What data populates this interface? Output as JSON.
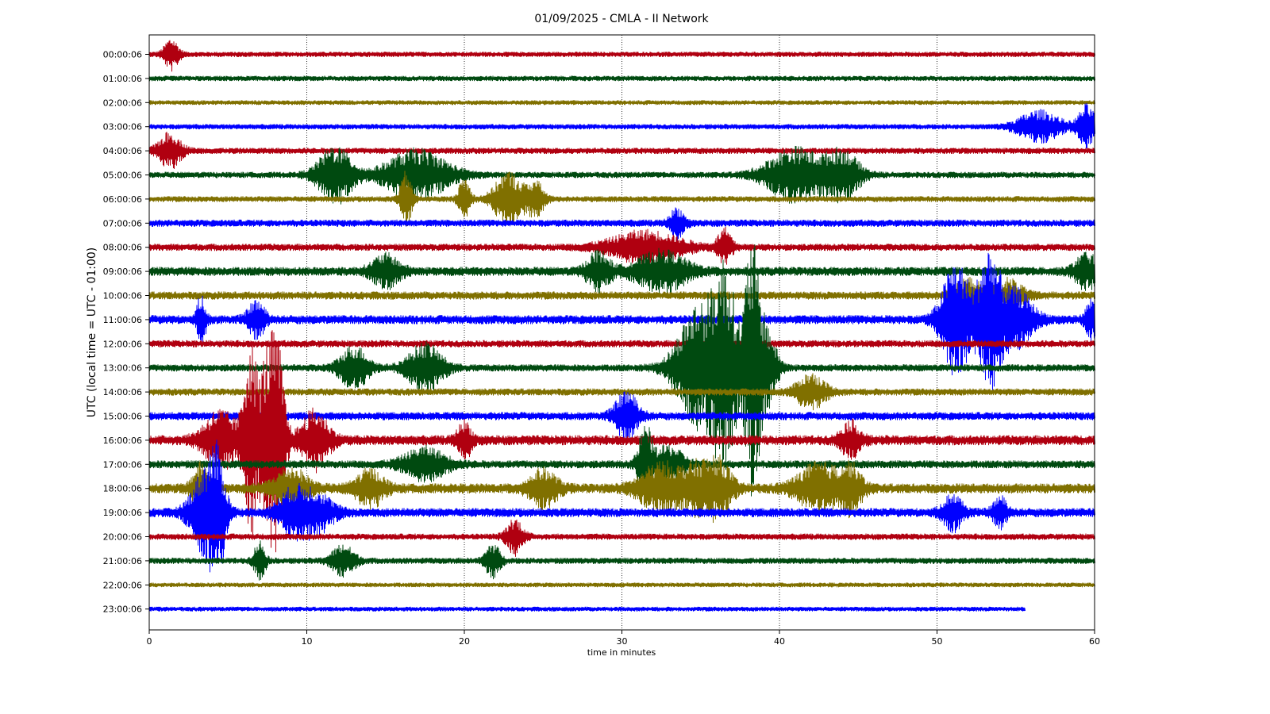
{
  "chart_data": {
    "type": "line",
    "title": "01/09/2025 - CMLA - II Network",
    "xlabel": "time in minutes",
    "ylabel": "UTC (local time = UTC - 01:00)",
    "xlim": [
      0,
      60
    ],
    "xticks": [
      "0",
      "10",
      "20",
      "30",
      "40",
      "50",
      "60"
    ],
    "grid": "vertical dotted at x ticks",
    "rows": [
      {
        "label": "00:00:06",
        "color": "#b00010",
        "amp": 0.25,
        "end": 60,
        "bursts": [
          [
            1.4,
            0.5,
            1.6
          ]
        ]
      },
      {
        "label": "01:00:06",
        "color": "#004a10",
        "amp": 0.25,
        "end": 60,
        "bursts": []
      },
      {
        "label": "02:00:06",
        "color": "#807000",
        "amp": 0.22,
        "end": 60,
        "bursts": []
      },
      {
        "label": "03:00:06",
        "color": "#0000ff",
        "amp": 0.25,
        "end": 60,
        "bursts": [
          [
            56.5,
            1.5,
            1.6
          ],
          [
            59.5,
            0.6,
            2.2
          ]
        ]
      },
      {
        "label": "04:00:06",
        "color": "#b00010",
        "amp": 0.3,
        "end": 60,
        "bursts": [
          [
            1.3,
            0.8,
            1.8
          ]
        ]
      },
      {
        "label": "05:00:06",
        "color": "#004a10",
        "amp": 0.3,
        "end": 60,
        "bursts": [
          [
            11.8,
            1.2,
            3.0
          ],
          [
            17.0,
            2.2,
            2.6
          ],
          [
            41.0,
            2.0,
            2.8
          ],
          [
            44.0,
            1.2,
            2.4
          ]
        ]
      },
      {
        "label": "06:00:06",
        "color": "#807000",
        "amp": 0.28,
        "end": 60,
        "bursts": [
          [
            16.3,
            0.4,
            2.8
          ],
          [
            20.0,
            0.4,
            2.2
          ],
          [
            22.8,
            1.0,
            2.8
          ],
          [
            24.5,
            0.6,
            1.8
          ]
        ]
      },
      {
        "label": "07:00:06",
        "color": "#0000ff",
        "amp": 0.35,
        "end": 60,
        "bursts": [
          [
            33.5,
            0.5,
            1.5
          ]
        ]
      },
      {
        "label": "08:00:06",
        "color": "#b00010",
        "amp": 0.35,
        "end": 60,
        "bursts": [
          [
            31.5,
            2.5,
            1.6
          ],
          [
            36.5,
            0.5,
            1.8
          ]
        ]
      },
      {
        "label": "09:00:06",
        "color": "#004a10",
        "amp": 0.45,
        "end": 60,
        "bursts": [
          [
            15.0,
            1.0,
            1.6
          ],
          [
            28.5,
            0.8,
            2.0
          ],
          [
            32.5,
            1.8,
            2.0
          ],
          [
            59.5,
            0.8,
            1.8
          ]
        ]
      },
      {
        "label": "10:00:06",
        "color": "#807000",
        "amp": 0.4,
        "end": 60,
        "bursts": [
          [
            52.0,
            1.0,
            1.6
          ],
          [
            54.5,
            1.0,
            1.6
          ]
        ]
      },
      {
        "label": "11:00:06",
        "color": "#0000ff",
        "amp": 0.45,
        "end": 60,
        "bursts": [
          [
            3.3,
            0.3,
            2.5
          ],
          [
            6.8,
            0.6,
            1.8
          ],
          [
            51.2,
            1.0,
            6.0
          ],
          [
            53.3,
            0.8,
            7.0
          ],
          [
            55.0,
            1.2,
            3.0
          ],
          [
            59.8,
            0.4,
            2.0
          ]
        ]
      },
      {
        "label": "12:00:06",
        "color": "#b00010",
        "amp": 0.35,
        "end": 60,
        "bursts": []
      },
      {
        "label": "13:00:06",
        "color": "#004a10",
        "amp": 0.35,
        "end": 60,
        "bursts": [
          [
            13.0,
            1.0,
            2.2
          ],
          [
            17.5,
            1.2,
            2.5
          ],
          [
            35.0,
            1.6,
            7.0
          ],
          [
            36.6,
            0.8,
            9.0
          ],
          [
            38.2,
            0.5,
            12.0
          ],
          [
            39.0,
            0.8,
            5.0
          ]
        ]
      },
      {
        "label": "14:00:06",
        "color": "#807000",
        "amp": 0.35,
        "end": 60,
        "bursts": [
          [
            42.0,
            1.0,
            1.8
          ]
        ]
      },
      {
        "label": "15:00:06",
        "color": "#0000ff",
        "amp": 0.4,
        "end": 60,
        "bursts": [
          [
            30.3,
            0.8,
            2.5
          ]
        ]
      },
      {
        "label": "16:00:06",
        "color": "#b00010",
        "amp": 0.5,
        "end": 60,
        "bursts": [
          [
            4.5,
            1.2,
            3.0
          ],
          [
            6.4,
            0.5,
            10.0
          ],
          [
            7.5,
            0.6,
            9.0
          ],
          [
            8.2,
            0.5,
            8.0
          ],
          [
            10.5,
            1.0,
            3.0
          ],
          [
            20.0,
            0.5,
            1.8
          ],
          [
            44.5,
            0.7,
            1.8
          ]
        ]
      },
      {
        "label": "17:00:06",
        "color": "#004a10",
        "amp": 0.4,
        "end": 60,
        "bursts": [
          [
            17.5,
            1.5,
            1.6
          ],
          [
            31.5,
            0.5,
            4.0
          ],
          [
            33.0,
            1.0,
            1.8
          ]
        ]
      },
      {
        "label": "18:00:06",
        "color": "#807000",
        "amp": 0.5,
        "end": 60,
        "bursts": [
          [
            3.3,
            0.6,
            2.5
          ],
          [
            9.0,
            1.2,
            2.0
          ],
          [
            14.0,
            1.0,
            1.8
          ],
          [
            25.0,
            1.0,
            1.8
          ],
          [
            32.5,
            1.5,
            2.5
          ],
          [
            35.0,
            1.2,
            2.5
          ],
          [
            36.3,
            0.8,
            2.2
          ],
          [
            42.5,
            1.5,
            2.5
          ],
          [
            44.5,
            0.8,
            2.2
          ]
        ]
      },
      {
        "label": "19:00:06",
        "color": "#0000ff",
        "amp": 0.45,
        "end": 60,
        "bursts": [
          [
            3.5,
            1.0,
            4.0
          ],
          [
            4.3,
            0.6,
            5.0
          ],
          [
            9.0,
            1.0,
            2.0
          ],
          [
            10.5,
            1.2,
            2.2
          ],
          [
            51.0,
            0.7,
            1.8
          ],
          [
            54.0,
            0.5,
            1.5
          ]
        ]
      },
      {
        "label": "20:00:06",
        "color": "#b00010",
        "amp": 0.3,
        "end": 60,
        "bursts": [
          [
            23.2,
            0.6,
            1.8
          ]
        ]
      },
      {
        "label": "21:00:06",
        "color": "#004a10",
        "amp": 0.3,
        "end": 60,
        "bursts": [
          [
            7.0,
            0.4,
            2.0
          ],
          [
            12.3,
            0.8,
            1.6
          ],
          [
            21.8,
            0.5,
            1.8
          ]
        ]
      },
      {
        "label": "22:00:06",
        "color": "#807000",
        "amp": 0.22,
        "end": 60,
        "bursts": []
      },
      {
        "label": "23:00:06",
        "color": "#0000ff",
        "amp": 0.22,
        "end": 55.6,
        "bursts": []
      }
    ]
  }
}
